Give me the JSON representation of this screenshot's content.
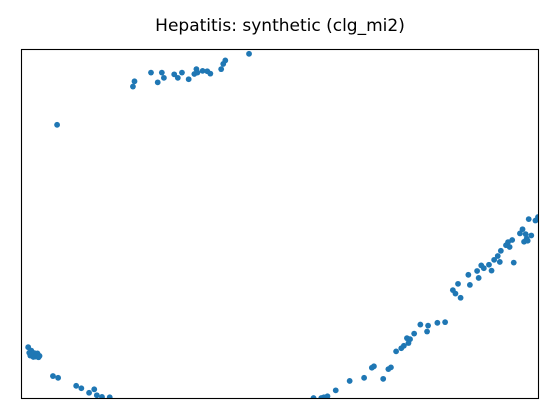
{
  "chart_data": {
    "type": "scatter",
    "title": "Hepatitis: synthetic (clg_mi2)",
    "xlabel": "",
    "ylabel": "",
    "axis_ticks": "none",
    "grid": false,
    "legend": "none",
    "color": "#1f77b4",
    "xlim": [
      0,
      100
    ],
    "ylim": [
      0,
      100
    ],
    "series": [
      {
        "points": [
          [
            1.2,
            14.6
          ],
          [
            1.4,
            13.0
          ],
          [
            1.6,
            12.2
          ],
          [
            1.8,
            13.6
          ],
          [
            2.0,
            12.7
          ],
          [
            2.2,
            11.8
          ],
          [
            2.4,
            12.9
          ],
          [
            2.6,
            11.9
          ],
          [
            2.8,
            12.4
          ],
          [
            3.0,
            12.8
          ],
          [
            3.2,
            11.7
          ],
          [
            3.4,
            12.1
          ],
          [
            6.0,
            6.3
          ],
          [
            7.0,
            5.8
          ],
          [
            10.5,
            3.5
          ],
          [
            11.5,
            2.8
          ],
          [
            13.0,
            1.5
          ],
          [
            14.0,
            2.5
          ],
          [
            14.5,
            0.8
          ],
          [
            15.5,
            0.3
          ],
          [
            17.0,
            0.2
          ],
          [
            6.8,
            78.5
          ],
          [
            21.5,
            89.5
          ],
          [
            21.8,
            91.0
          ],
          [
            25.0,
            93.5
          ],
          [
            26.3,
            90.7
          ],
          [
            27.1,
            93.5
          ],
          [
            27.5,
            92.0
          ],
          [
            29.5,
            93.0
          ],
          [
            30.2,
            92.0
          ],
          [
            31.0,
            93.5
          ],
          [
            32.3,
            91.6
          ],
          [
            33.4,
            93.1
          ],
          [
            33.8,
            94.5
          ],
          [
            34.0,
            93.5
          ],
          [
            35.0,
            94.0
          ],
          [
            35.9,
            93.9
          ],
          [
            36.5,
            93.2
          ],
          [
            38.6,
            94.5
          ],
          [
            39.0,
            96.0
          ],
          [
            39.4,
            97.0
          ],
          [
            44.0,
            98.9
          ],
          [
            56.5,
            0.0
          ],
          [
            58.0,
            0.0
          ],
          [
            58.5,
            0.2
          ],
          [
            59.2,
            0.5
          ],
          [
            60.8,
            2.2
          ],
          [
            63.5,
            4.9
          ],
          [
            66.3,
            5.8
          ],
          [
            67.8,
            8.7
          ],
          [
            68.2,
            9.1
          ],
          [
            70.0,
            5.5
          ],
          [
            71.0,
            8.3
          ],
          [
            71.5,
            8.8
          ],
          [
            72.5,
            13.4
          ],
          [
            73.5,
            14.3
          ],
          [
            74.0,
            15.0
          ],
          [
            74.6,
            17.2
          ],
          [
            74.9,
            15.8
          ],
          [
            75.2,
            16.9
          ],
          [
            76.0,
            18.5
          ],
          [
            77.2,
            21.1
          ],
          [
            78.5,
            19.1
          ],
          [
            78.7,
            20.8
          ],
          [
            80.5,
            21.6
          ],
          [
            82.0,
            21.8
          ],
          [
            83.5,
            31.0
          ],
          [
            84.0,
            30.0
          ],
          [
            84.5,
            32.8
          ],
          [
            85.0,
            28.8
          ],
          [
            86.5,
            35.4
          ],
          [
            86.8,
            32.5
          ],
          [
            88.2,
            36.5
          ],
          [
            88.5,
            34.5
          ],
          [
            89.0,
            38.1
          ],
          [
            89.5,
            37.3
          ],
          [
            90.5,
            38.3
          ],
          [
            91.0,
            36.6
          ],
          [
            91.5,
            39.7
          ],
          [
            92.2,
            40.8
          ],
          [
            92.6,
            39.1
          ],
          [
            92.8,
            42.3
          ],
          [
            93.8,
            43.9
          ],
          [
            94.2,
            44.8
          ],
          [
            94.5,
            43.4
          ],
          [
            95.0,
            45.4
          ],
          [
            95.3,
            38.9
          ],
          [
            96.5,
            47.3
          ],
          [
            97.0,
            48.5
          ],
          [
            97.3,
            44.9
          ],
          [
            97.6,
            47.1
          ],
          [
            97.8,
            45.8
          ],
          [
            98.0,
            45.2
          ],
          [
            98.2,
            51.4
          ],
          [
            98.7,
            46.7
          ],
          [
            99.5,
            51.0
          ],
          [
            100.0,
            52.0
          ]
        ]
      }
    ]
  }
}
